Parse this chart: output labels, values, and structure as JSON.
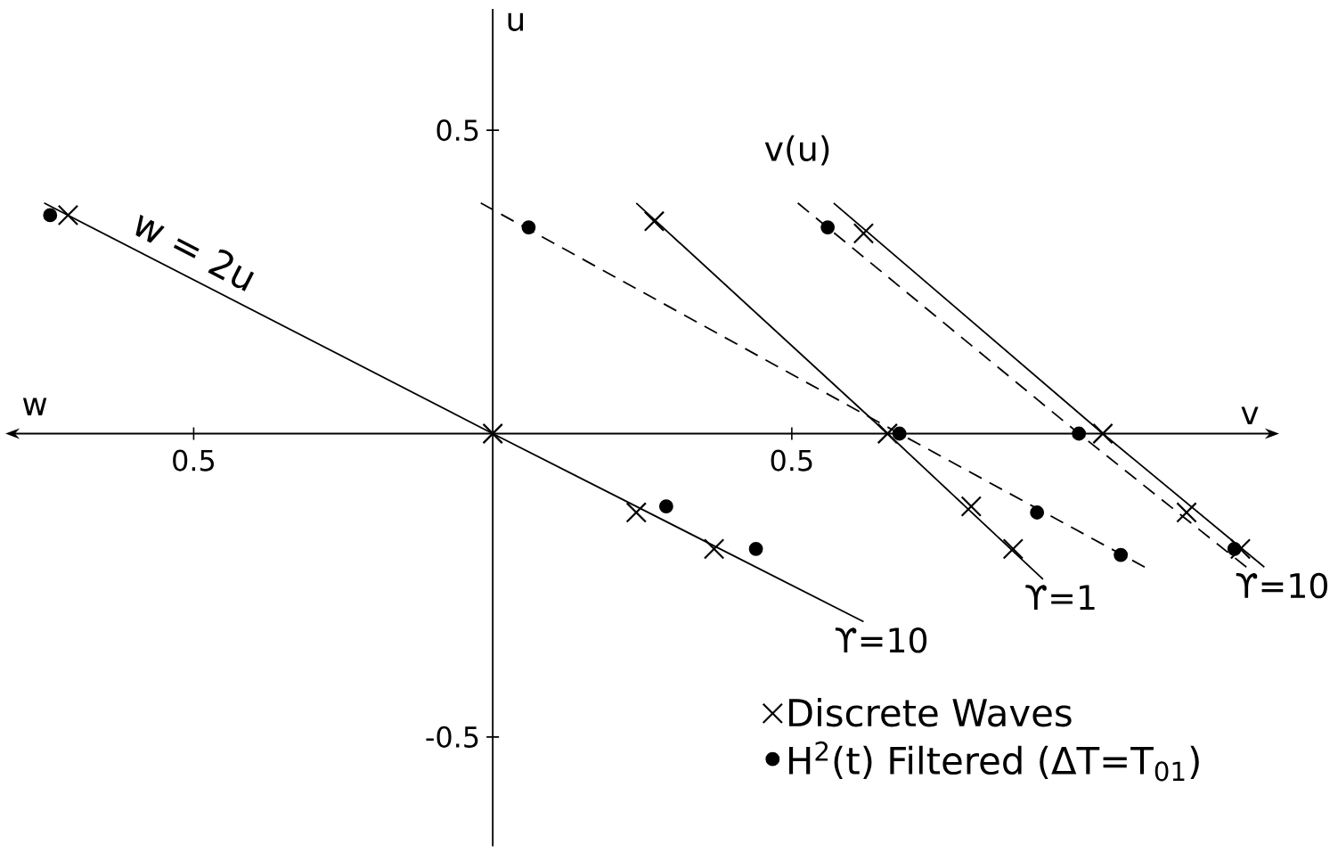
{
  "chart_data": {
    "type": "line",
    "xlabel": "v",
    "ylabel": "u",
    "xlim": [
      -0.8,
      1.3
    ],
    "ylim": [
      -0.68,
      0.7
    ],
    "xticks": [
      {
        "value": -0.5,
        "label": "0.5"
      },
      0.5
    ],
    "yticks": [
      -0.5,
      0.5
    ],
    "legend": "bottom right",
    "series": [
      {
        "color": "#000000",
        "line_style": "solid",
        "x": [
          -0.75,
          0,
          0.62
        ],
        "values": [
          0.38,
          0,
          -0.31
        ]
      },
      {
        "color": "#000000",
        "line_style": "solid",
        "x": [
          0.24,
          0.66,
          0.92
        ],
        "values": [
          0.38,
          0,
          -0.24
        ]
      },
      {
        "color": "#000000",
        "line_style": "dashed",
        "x": [
          -0.02,
          0.68,
          1.09
        ],
        "values": [
          0.38,
          0,
          -0.22
        ]
      },
      {
        "color": "#000000",
        "line_style": "solid",
        "x": [
          0.57,
          1.02,
          1.29
        ],
        "values": [
          0.38,
          0,
          -0.22
        ]
      },
      {
        "color": "#000000",
        "line_style": "dashed",
        "x": [
          0.51,
          0.98,
          1.26
        ],
        "values": [
          0.38,
          0,
          -0.22
        ]
      },
      {
        "type": "scatter",
        "name": "Discrete Waves",
        "marker": "cross",
        "color": "#000000",
        "x": [
          -0.71,
          0,
          0.24,
          0.37,
          0.27,
          0.66,
          0.8,
          0.87,
          0.62,
          1.02,
          1.16,
          1.25
        ],
        "values": [
          0.36,
          0,
          -0.13,
          -0.19,
          0.35,
          0,
          -0.12,
          -0.19,
          0.33,
          0,
          -0.13,
          -0.19
        ]
      },
      {
        "type": "scatter",
        "name": "H$^{2}$(t) Filtered (ΔT=T$_{01}$)",
        "marker": "circle",
        "color": "#000000",
        "x": [
          -0.74,
          0.06,
          0.29,
          0.44,
          0.68,
          0.91,
          1.05,
          0.56,
          0.98,
          1.24
        ],
        "values": [
          0.36,
          0.34,
          -0.12,
          -0.19,
          0,
          -0.13,
          -0.2,
          0.34,
          0,
          -0.19
        ]
      }
    ],
    "annotations": [
      "w",
      {
        "text": "w = 2u",
        "x": -0.52,
        "y": 0.26
      },
      {
        "text": "v(u)",
        "x": 0.51,
        "y": 0.38
      },
      {
        "text": "ϒ=10",
        "x": 0.62,
        "y": -0.31
      },
      {
        "text": "ϒ=1",
        "x": 0.92,
        "y": -0.24
      },
      {
        "text": "ϒ=10",
        "x": 1.29,
        "y": -0.22
      }
    ]
  }
}
